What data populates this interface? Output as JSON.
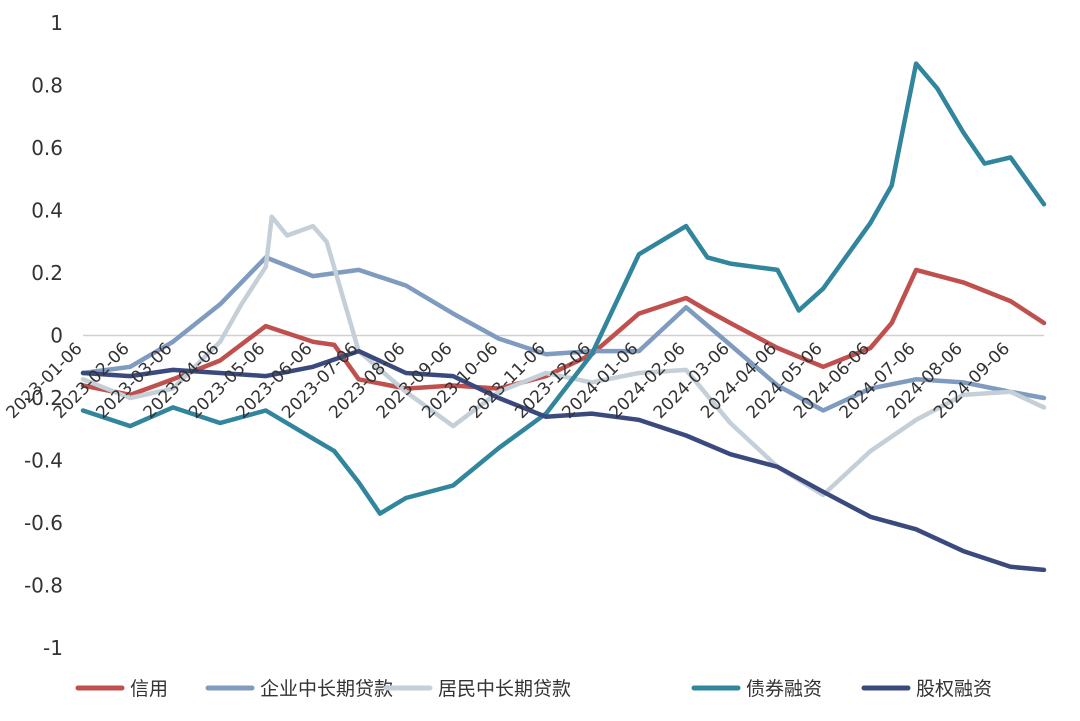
{
  "chart_data": {
    "type": "line",
    "title": "",
    "xlabel": "",
    "ylabel": "",
    "ylim": [
      -1,
      1
    ],
    "yticks": [
      "1",
      "0.8",
      "0.6",
      "0.4",
      "0.2",
      "0",
      "-0.2",
      "-0.4",
      "-0.6",
      "-0.8",
      "-1"
    ],
    "xticks": [
      "2023-01-06",
      "2023-02-06",
      "2023-03-06",
      "2023-04-06",
      "2023-05-06",
      "2023-06-06",
      "2023-07-06",
      "2023-08-06",
      "2023-09-06",
      "2023-10-06",
      "2023-11-06",
      "2023-12-06",
      "2024-01-06",
      "2024-02-06",
      "2024-03-06",
      "2024-04-06",
      "2024-05-06",
      "2024-06-06",
      "2024-07-06",
      "2024-08-06",
      "2024-09-06"
    ],
    "legend_position": "bottom",
    "grid": false,
    "series": [
      {
        "name": "信用",
        "color": "#c0504d",
        "points": [
          [
            "2023-01-06",
            -0.16
          ],
          [
            "2023-02-06",
            -0.19
          ],
          [
            "2023-03-06",
            -0.14
          ],
          [
            "2023-04-06",
            -0.08
          ],
          [
            "2023-05-06",
            0.03
          ],
          [
            "2023-06-06",
            -0.02
          ],
          [
            "2023-06-20",
            -0.03
          ],
          [
            "2023-07-06",
            -0.14
          ],
          [
            "2023-08-06",
            -0.17
          ],
          [
            "2023-09-06",
            -0.16
          ],
          [
            "2023-10-06",
            -0.17
          ],
          [
            "2023-11-06",
            -0.13
          ],
          [
            "2023-12-06",
            -0.06
          ],
          [
            "2024-01-06",
            0.07
          ],
          [
            "2024-02-06",
            0.12
          ],
          [
            "2024-02-20",
            0.08
          ],
          [
            "2024-03-06",
            0.04
          ],
          [
            "2024-04-06",
            -0.04
          ],
          [
            "2024-05-06",
            -0.1
          ],
          [
            "2024-06-06",
            -0.04
          ],
          [
            "2024-06-20",
            0.04
          ],
          [
            "2024-07-06",
            0.21
          ],
          [
            "2024-08-06",
            0.17
          ],
          [
            "2024-09-06",
            0.11
          ],
          [
            "2024-09-28",
            0.04
          ]
        ]
      },
      {
        "name": "企业中长期贷款",
        "color": "#7f9bbf",
        "points": [
          [
            "2023-01-06",
            -0.12
          ],
          [
            "2023-02-06",
            -0.1
          ],
          [
            "2023-03-06",
            -0.02
          ],
          [
            "2023-04-06",
            0.1
          ],
          [
            "2023-05-06",
            0.25
          ],
          [
            "2023-06-06",
            0.19
          ],
          [
            "2023-07-06",
            0.21
          ],
          [
            "2023-08-06",
            0.16
          ],
          [
            "2023-09-06",
            0.07
          ],
          [
            "2023-10-06",
            -0.01
          ],
          [
            "2023-11-06",
            -0.06
          ],
          [
            "2023-12-06",
            -0.05
          ],
          [
            "2024-01-06",
            -0.05
          ],
          [
            "2024-02-06",
            0.09
          ],
          [
            "2024-03-06",
            -0.03
          ],
          [
            "2024-04-06",
            -0.16
          ],
          [
            "2024-05-06",
            -0.24
          ],
          [
            "2024-06-06",
            -0.17
          ],
          [
            "2024-07-06",
            -0.14
          ],
          [
            "2024-08-06",
            -0.15
          ],
          [
            "2024-09-06",
            -0.18
          ],
          [
            "2024-09-28",
            -0.2
          ]
        ]
      },
      {
        "name": "居民中长期贷款",
        "color": "#c5cfd8",
        "points": [
          [
            "2023-01-06",
            -0.14
          ],
          [
            "2023-02-06",
            -0.2
          ],
          [
            "2023-03-06",
            -0.17
          ],
          [
            "2023-04-06",
            -0.02
          ],
          [
            "2023-04-20",
            0.1
          ],
          [
            "2023-05-06",
            0.22
          ],
          [
            "2023-05-10",
            0.38
          ],
          [
            "2023-05-20",
            0.32
          ],
          [
            "2023-06-06",
            0.35
          ],
          [
            "2023-06-15",
            0.3
          ],
          [
            "2023-07-06",
            -0.05
          ],
          [
            "2023-08-06",
            -0.18
          ],
          [
            "2023-09-06",
            -0.29
          ],
          [
            "2023-10-06",
            -0.18
          ],
          [
            "2023-11-06",
            -0.12
          ],
          [
            "2023-12-06",
            -0.15
          ],
          [
            "2024-01-06",
            -0.12
          ],
          [
            "2024-02-06",
            -0.11
          ],
          [
            "2024-03-06",
            -0.28
          ],
          [
            "2024-04-06",
            -0.42
          ],
          [
            "2024-05-06",
            -0.51
          ],
          [
            "2024-06-06",
            -0.37
          ],
          [
            "2024-07-06",
            -0.27
          ],
          [
            "2024-08-06",
            -0.19
          ],
          [
            "2024-09-06",
            -0.18
          ],
          [
            "2024-09-28",
            -0.23
          ]
        ]
      },
      {
        "name": "债券融资",
        "color": "#31859c",
        "points": [
          [
            "2023-01-06",
            -0.24
          ],
          [
            "2023-02-06",
            -0.29
          ],
          [
            "2023-03-06",
            -0.23
          ],
          [
            "2023-04-06",
            -0.28
          ],
          [
            "2023-05-06",
            -0.24
          ],
          [
            "2023-06-06",
            -0.33
          ],
          [
            "2023-06-20",
            -0.37
          ],
          [
            "2023-07-06",
            -0.47
          ],
          [
            "2023-07-20",
            -0.57
          ],
          [
            "2023-08-06",
            -0.52
          ],
          [
            "2023-09-06",
            -0.48
          ],
          [
            "2023-10-06",
            -0.36
          ],
          [
            "2023-11-06",
            -0.25
          ],
          [
            "2023-12-06",
            -0.06
          ],
          [
            "2024-01-06",
            0.26
          ],
          [
            "2024-02-06",
            0.35
          ],
          [
            "2024-02-20",
            0.25
          ],
          [
            "2024-03-06",
            0.23
          ],
          [
            "2024-04-06",
            0.21
          ],
          [
            "2024-04-20",
            0.08
          ],
          [
            "2024-05-06",
            0.15
          ],
          [
            "2024-06-06",
            0.36
          ],
          [
            "2024-06-20",
            0.48
          ],
          [
            "2024-07-06",
            0.87
          ],
          [
            "2024-07-20",
            0.79
          ],
          [
            "2024-08-06",
            0.65
          ],
          [
            "2024-08-20",
            0.55
          ],
          [
            "2024-09-06",
            0.57
          ],
          [
            "2024-09-28",
            0.42
          ]
        ]
      },
      {
        "name": "股权融资",
        "color": "#3b4a7e",
        "points": [
          [
            "2023-01-06",
            -0.12
          ],
          [
            "2023-02-06",
            -0.13
          ],
          [
            "2023-03-06",
            -0.11
          ],
          [
            "2023-04-06",
            -0.12
          ],
          [
            "2023-05-06",
            -0.13
          ],
          [
            "2023-06-06",
            -0.1
          ],
          [
            "2023-07-06",
            -0.05
          ],
          [
            "2023-08-06",
            -0.12
          ],
          [
            "2023-09-06",
            -0.13
          ],
          [
            "2023-10-06",
            -0.2
          ],
          [
            "2023-11-06",
            -0.26
          ],
          [
            "2023-12-06",
            -0.25
          ],
          [
            "2024-01-06",
            -0.27
          ],
          [
            "2024-02-06",
            -0.32
          ],
          [
            "2024-03-06",
            -0.38
          ],
          [
            "2024-04-06",
            -0.42
          ],
          [
            "2024-05-06",
            -0.5
          ],
          [
            "2024-06-06",
            -0.58
          ],
          [
            "2024-07-06",
            -0.62
          ],
          [
            "2024-08-06",
            -0.69
          ],
          [
            "2024-09-06",
            -0.74
          ],
          [
            "2024-09-28",
            -0.75
          ]
        ]
      }
    ]
  }
}
